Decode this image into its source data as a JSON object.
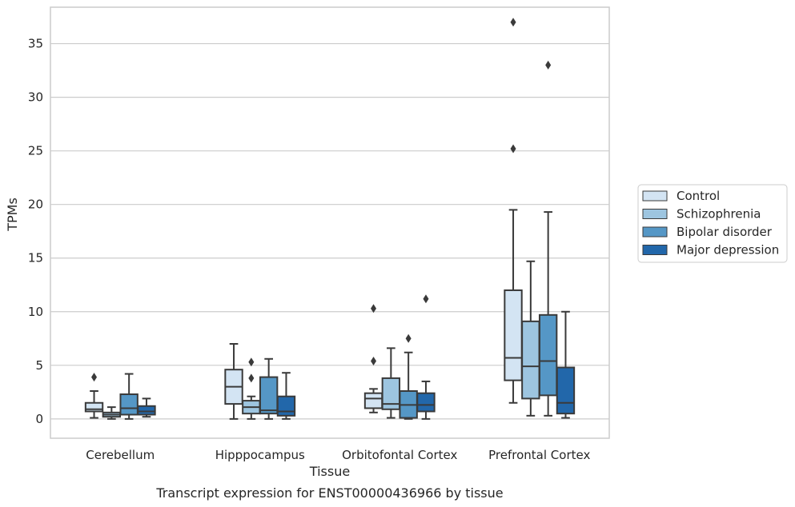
{
  "chart_data": {
    "type": "box",
    "caption": "Transcript expression for ENST00000436966 by tissue",
    "xlabel": "Tissue",
    "ylabel": "TPMs",
    "ylim": [
      -1.8,
      38.4
    ],
    "yticks": [
      0,
      5,
      10,
      15,
      20,
      25,
      30,
      35
    ],
    "grid": true,
    "legend_position": "right",
    "categories": [
      "Cerebellum",
      "Hipppocampus",
      "Orbitofontal Cortex",
      "Prefrontal Cortex"
    ],
    "series": [
      {
        "name": "Control",
        "color": "#d3e4f3",
        "boxes": [
          {
            "whislo": 0.1,
            "q1": 0.7,
            "med": 0.9,
            "q3": 1.5,
            "whishi": 2.6,
            "fliers": [
              3.9
            ]
          },
          {
            "whislo": 0.0,
            "q1": 1.4,
            "med": 3.0,
            "q3": 4.6,
            "whishi": 7.0,
            "fliers": []
          },
          {
            "whislo": 0.6,
            "q1": 1.0,
            "med": 1.9,
            "q3": 2.4,
            "whishi": 2.8,
            "fliers": [
              5.4,
              10.3
            ]
          },
          {
            "whislo": 1.5,
            "q1": 3.6,
            "med": 5.7,
            "q3": 12.0,
            "whishi": 19.5,
            "fliers": [
              25.2,
              37.0
            ]
          }
        ]
      },
      {
        "name": "Schizophrenia",
        "color": "#9dc5e0",
        "boxes": [
          {
            "whislo": 0.0,
            "q1": 0.2,
            "med": 0.4,
            "q3": 0.6,
            "whishi": 1.1,
            "fliers": []
          },
          {
            "whislo": 0.0,
            "q1": 0.5,
            "med": 1.1,
            "q3": 1.7,
            "whishi": 2.1,
            "fliers": [
              3.8,
              5.3
            ]
          },
          {
            "whislo": 0.1,
            "q1": 0.9,
            "med": 1.4,
            "q3": 3.8,
            "whishi": 6.6,
            "fliers": []
          },
          {
            "whislo": 0.3,
            "q1": 1.9,
            "med": 4.9,
            "q3": 9.1,
            "whishi": 14.7,
            "fliers": []
          }
        ]
      },
      {
        "name": "Bipolar disorder",
        "color": "#5597c6",
        "boxes": [
          {
            "whislo": 0.0,
            "q1": 0.4,
            "med": 1.0,
            "q3": 2.3,
            "whishi": 4.2,
            "fliers": []
          },
          {
            "whislo": 0.0,
            "q1": 0.5,
            "med": 0.8,
            "q3": 3.9,
            "whishi": 5.6,
            "fliers": []
          },
          {
            "whislo": 0.0,
            "q1": 0.1,
            "med": 1.3,
            "q3": 2.6,
            "whishi": 6.2,
            "fliers": [
              7.5
            ]
          },
          {
            "whislo": 0.3,
            "q1": 2.2,
            "med": 5.4,
            "q3": 9.7,
            "whishi": 19.3,
            "fliers": [
              33.0
            ]
          }
        ]
      },
      {
        "name": "Major depression",
        "color": "#2267aa",
        "boxes": [
          {
            "whislo": 0.2,
            "q1": 0.4,
            "med": 0.7,
            "q3": 1.2,
            "whishi": 1.9,
            "fliers": []
          },
          {
            "whislo": 0.0,
            "q1": 0.3,
            "med": 0.7,
            "q3": 2.1,
            "whishi": 4.3,
            "fliers": []
          },
          {
            "whislo": 0.0,
            "q1": 0.7,
            "med": 1.3,
            "q3": 2.4,
            "whishi": 3.5,
            "fliers": [
              11.2
            ]
          },
          {
            "whislo": 0.1,
            "q1": 0.5,
            "med": 1.5,
            "q3": 4.8,
            "whishi": 10.0,
            "fliers": []
          }
        ]
      }
    ]
  }
}
